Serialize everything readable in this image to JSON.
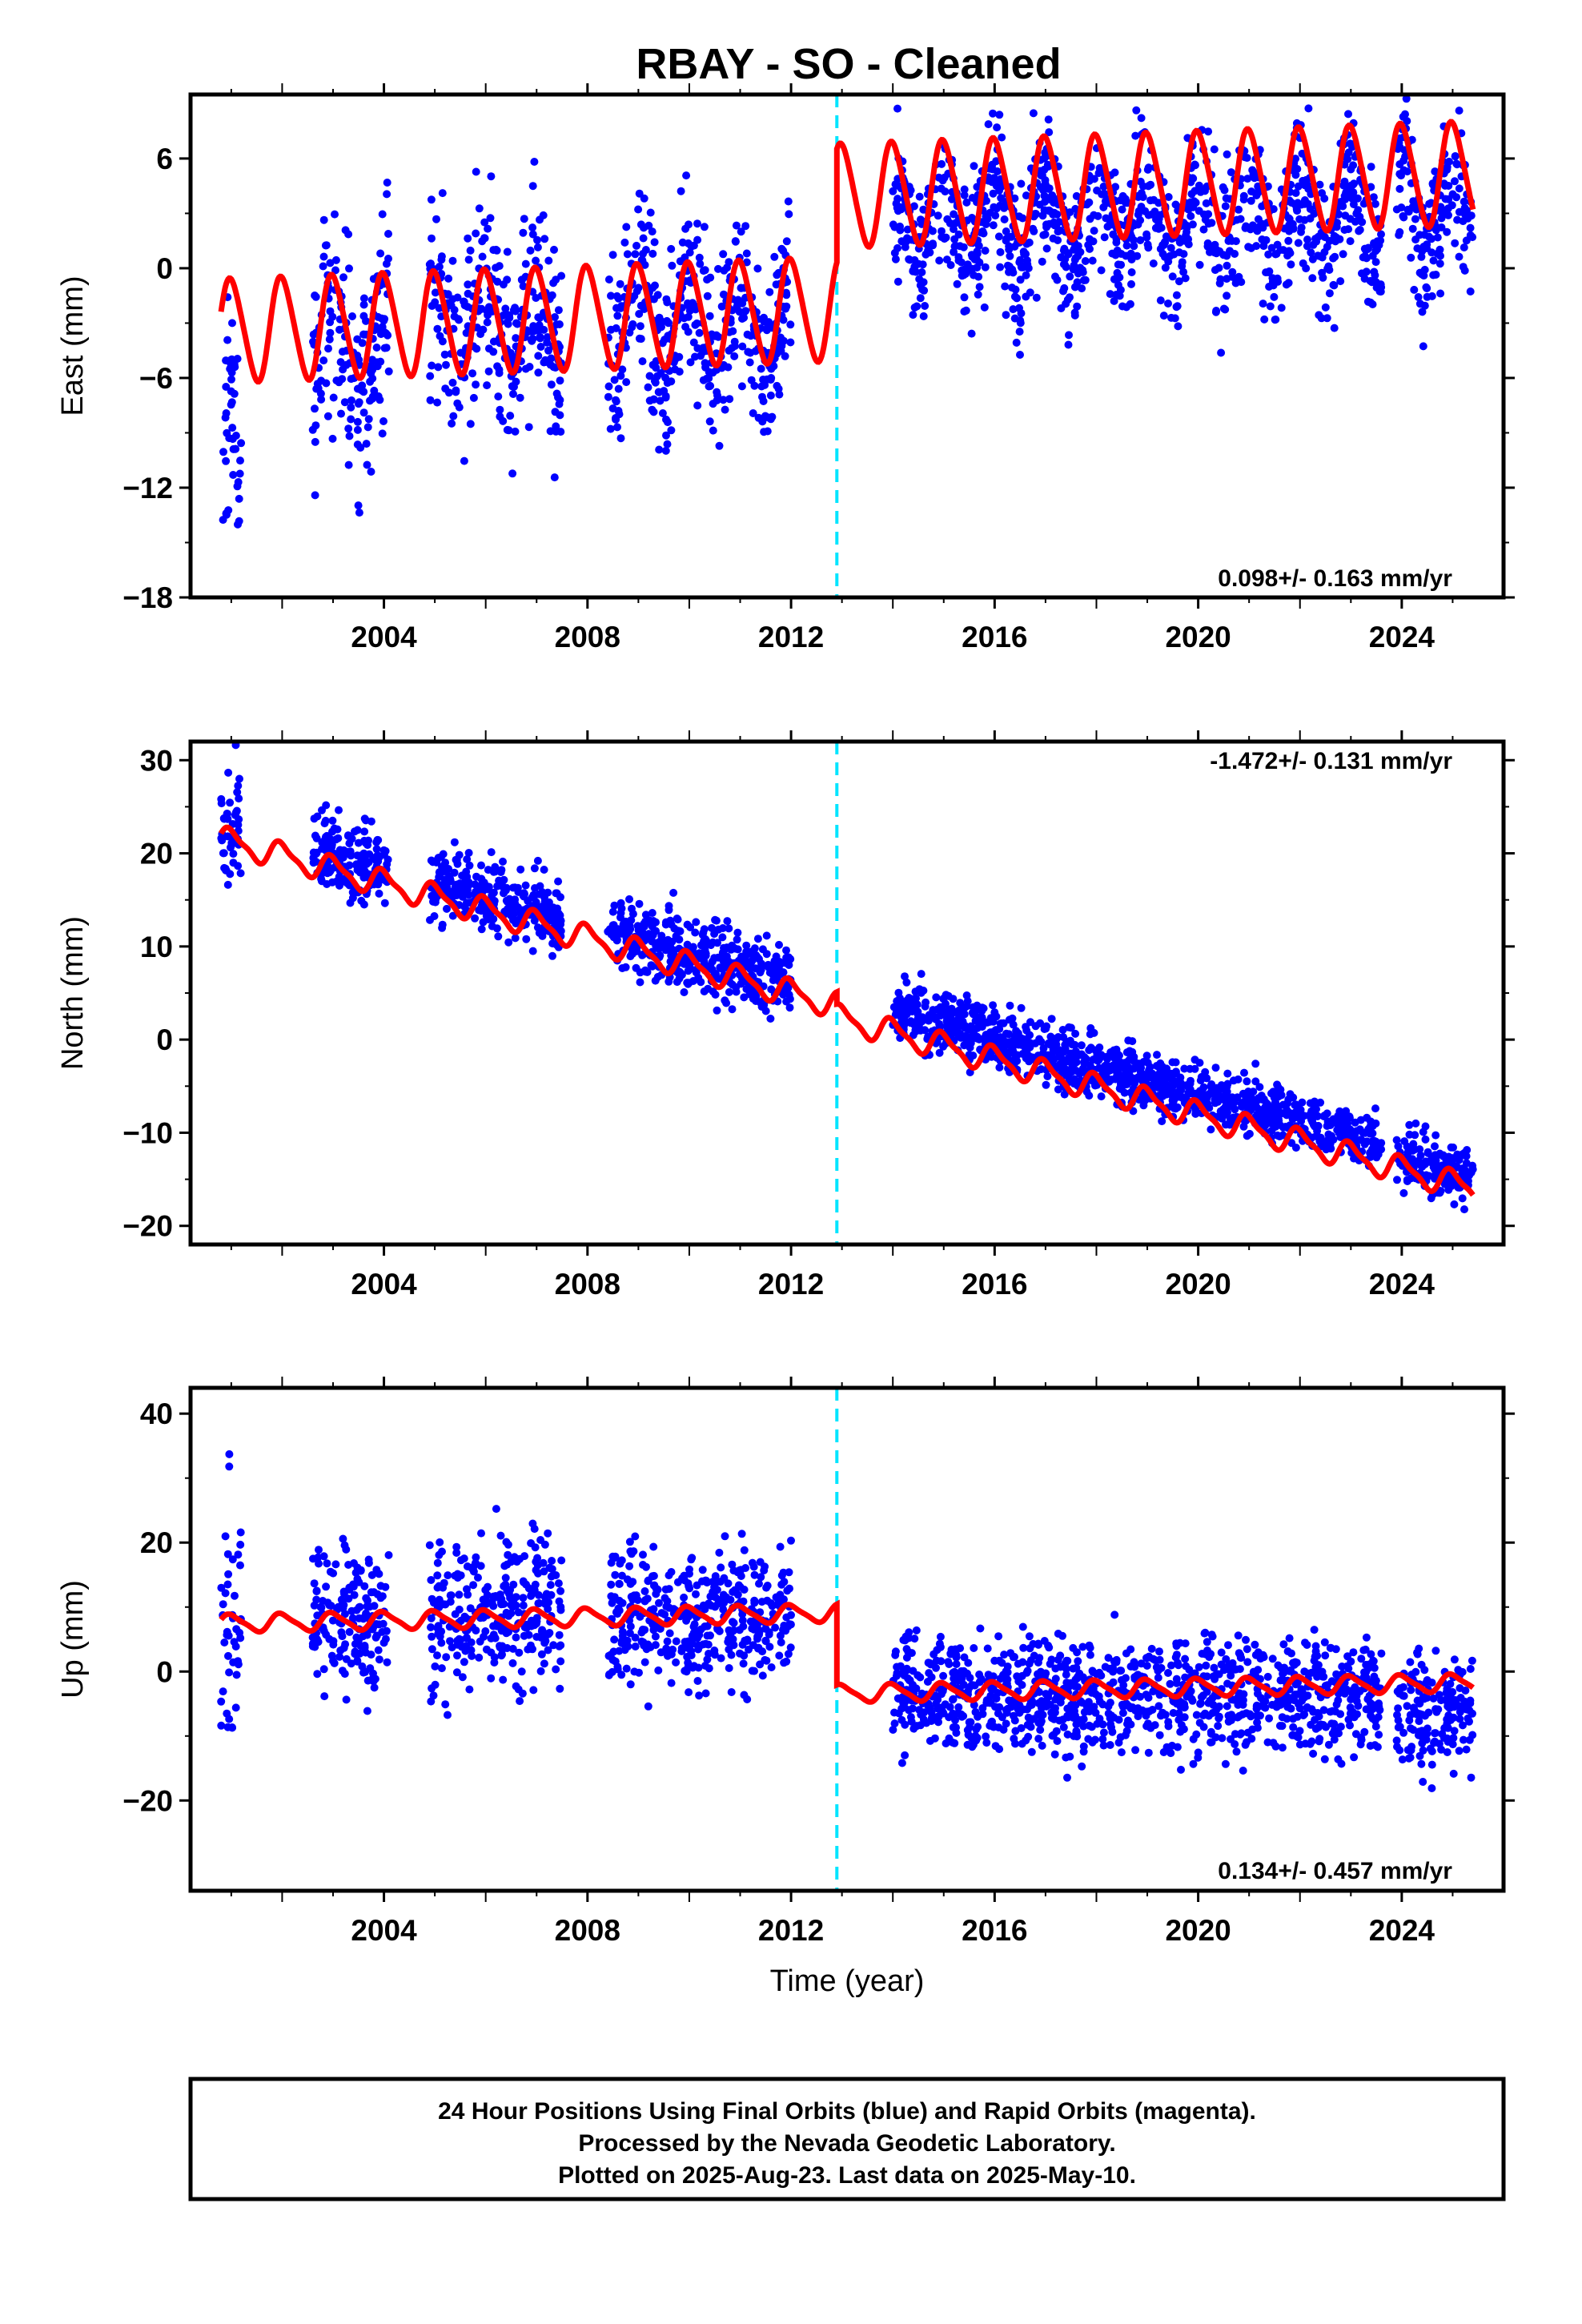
{
  "title": "RBAY  - SO - Cleaned",
  "x_axis_label": "Time (year)",
  "footer": {
    "line1": "24 Hour Positions Using Final Orbits (blue) and Rapid Orbits (magenta).",
    "line2": "Processed by the Nevada Geodetic Laboratory.",
    "line3": "Plotted on 2025-Aug-23. Last data on 2025-May-10."
  },
  "colors": {
    "points": "#0000ff",
    "model": "#ff0000",
    "step_marker": "#00e5ff",
    "axes": "#000000"
  },
  "chart_data": [
    {
      "type": "scatter",
      "component": "East",
      "ylabel": "East (mm)",
      "rate_text": "0.098+/- 0.163 mm/yr",
      "xlim": [
        2000.2,
        2026.0
      ],
      "ylim": [
        -18,
        9.5
      ],
      "xticks": [
        2004,
        2008,
        2012,
        2016,
        2020,
        2024
      ],
      "yticks": [
        6,
        0,
        -6,
        -12,
        -18
      ],
      "ytick_labels": [
        "6",
        "0",
        "−6",
        "−12",
        "−18"
      ],
      "step_year": 2012.9,
      "model": {
        "pre_offset": -3.4,
        "pre_trend": 0.098,
        "post_offset": 2.8,
        "post_trend": 0.098,
        "annual_amp": 2.8,
        "semiannual_amp": 0.3
      },
      "data_segments": [
        {
          "start": 2000.8,
          "end": 2001.2,
          "mean": -10.5,
          "trend": 0.0,
          "spread": 3.0
        },
        {
          "start": 2002.6,
          "end": 2004.1,
          "mean": -4.5,
          "trend": 0.3,
          "spread": 3.0
        },
        {
          "start": 2004.9,
          "end": 2007.5,
          "mean": -3.0,
          "trend": 0.1,
          "spread": 2.8
        },
        {
          "start": 2008.4,
          "end": 2012.0,
          "mean": -3.0,
          "trend": 0.0,
          "spread": 2.4
        },
        {
          "start": 2014.0,
          "end": 2023.6,
          "mean": 2.5,
          "trend": 0.05,
          "spread": 2.0
        },
        {
          "start": 2023.9,
          "end": 2025.4,
          "mean": 3.0,
          "trend": 0.0,
          "spread": 2.0
        }
      ]
    },
    {
      "type": "scatter",
      "component": "North",
      "ylabel": "North (mm)",
      "rate_text": "-1.472+/- 0.131 mm/yr",
      "xlim": [
        2000.2,
        2026.0
      ],
      "ylim": [
        -22,
        32
      ],
      "xticks": [
        2004,
        2008,
        2012,
        2016,
        2020,
        2024
      ],
      "yticks": [
        30,
        20,
        10,
        0,
        -10,
        -20
      ],
      "ytick_labels": [
        "30",
        "20",
        "10",
        "0",
        "−10",
        "−20"
      ],
      "step_year": 2012.9,
      "model": {
        "pre_offset": 21.2,
        "pre_trend": -1.472,
        "post_offset": 19.9,
        "post_trend": -1.472,
        "annual_amp": 1.3,
        "semiannual_amp": 0.4
      },
      "data_segments": [
        {
          "start": 2000.8,
          "end": 2001.2,
          "mean": 23.0,
          "trend": 0.0,
          "spread": 3.0
        },
        {
          "start": 2002.6,
          "end": 2004.1,
          "mean": 19.5,
          "trend": -1.5,
          "spread": 2.2
        },
        {
          "start": 2004.9,
          "end": 2007.5,
          "mean": 15.0,
          "trend": -1.5,
          "spread": 2.0
        },
        {
          "start": 2008.4,
          "end": 2012.0,
          "mean": 9.0,
          "trend": -1.5,
          "spread": 2.0
        },
        {
          "start": 2014.0,
          "end": 2023.6,
          "mean": -4.0,
          "trend": -1.5,
          "spread": 1.6
        },
        {
          "start": 2023.9,
          "end": 2025.4,
          "mean": -13.5,
          "trend": -1.5,
          "spread": 1.6
        }
      ]
    },
    {
      "type": "scatter",
      "component": "Up",
      "ylabel": "Up (mm)",
      "rate_text": "0.134+/- 0.457 mm/yr",
      "xlim": [
        2000.2,
        2026.0
      ],
      "ylim": [
        -34,
        44
      ],
      "xticks": [
        2004,
        2008,
        2012,
        2016,
        2020,
        2024
      ],
      "yticks": [
        40,
        20,
        0,
        -20
      ],
      "ytick_labels": [
        "40",
        "20",
        "0",
        "−20"
      ],
      "step_year": 2012.9,
      "model": {
        "pre_offset": 7.5,
        "pre_trend": 0.134,
        "post_offset": -5.0,
        "post_trend": 0.134,
        "annual_amp": 1.3,
        "semiannual_amp": 0.3
      },
      "data_segments": [
        {
          "start": 2000.8,
          "end": 2001.2,
          "mean": 8.0,
          "trend": 0.0,
          "spread": 9.0
        },
        {
          "start": 2002.6,
          "end": 2004.1,
          "mean": 8.5,
          "trend": 0.0,
          "spread": 6.0
        },
        {
          "start": 2004.9,
          "end": 2007.5,
          "mean": 9.0,
          "trend": 0.0,
          "spread": 6.0
        },
        {
          "start": 2008.4,
          "end": 2012.0,
          "mean": 8.5,
          "trend": 0.0,
          "spread": 5.5
        },
        {
          "start": 2014.0,
          "end": 2023.6,
          "mean": -3.5,
          "trend": 0.0,
          "spread": 4.5
        },
        {
          "start": 2023.9,
          "end": 2025.4,
          "mean": -6.0,
          "trend": 0.0,
          "spread": 4.5
        }
      ]
    }
  ]
}
